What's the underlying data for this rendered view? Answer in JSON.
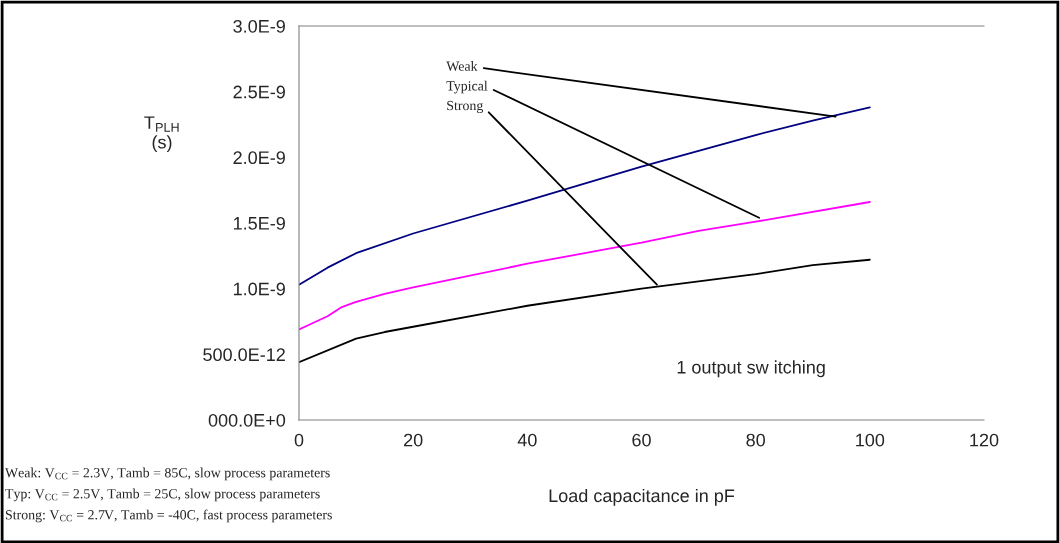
{
  "chart_data": {
    "type": "line",
    "xlabel": "Load capacitance in pF",
    "ylabel": "T$_{PLH}$\n(s)",
    "series": [
      {
        "color": "#000080",
        "x": [
          0,
          5,
          10,
          20,
          40,
          60,
          80,
          90,
          100
        ],
        "values": [
          1.03e-09,
          1.16e-09,
          1.27e-09,
          1.42e-09,
          1.67e-09,
          1.93e-09,
          2.17e-09,
          2.28e-09,
          2.38e-09
        ]
      },
      {
        "color": "#ff00ff",
        "x": [
          0,
          5,
          7.5,
          10,
          15,
          20,
          40,
          60,
          70,
          80,
          100
        ],
        "values": [
          6.9e-10,
          7.9e-10,
          8.6e-10,
          9e-10,
          9.6e-10,
          1.01e-09,
          1.19e-09,
          1.35e-09,
          1.44e-09,
          1.51e-09,
          1.66e-09
        ]
      },
      {
        "color": "#000000",
        "x": [
          0,
          10,
          15,
          20,
          40,
          60,
          80,
          90,
          100
        ],
        "values": [
          4.4e-10,
          6.2e-10,
          6.7e-10,
          7.1e-10,
          8.7e-10,
          1e-09,
          1.11e-09,
          1.18e-09,
          1.22e-09
        ]
      }
    ],
    "xlim": [
      0,
      120
    ],
    "xticks": [
      0,
      20,
      40,
      60,
      80,
      100,
      120
    ],
    "ylim": [
      0,
      3e-09
    ],
    "yticks": [
      {
        "value": 0,
        "label": "000.0E+0"
      },
      {
        "value": 5e-10,
        "label": "500.0E-12"
      },
      {
        "value": 1e-09,
        "label": "1.0E-9"
      },
      {
        "value": 1.5e-09,
        "label": "1.5E-9"
      },
      {
        "value": 2e-09,
        "label": "2.0E-9"
      },
      {
        "value": 2.5e-09,
        "label": "2.5E-9"
      },
      {
        "value": 3e-09,
        "label": "3.0E-9"
      }
    ],
    "grid": false,
    "legend": false,
    "marker": "none",
    "line_style": "solid",
    "annotations": [
      {
        "text": "Weak",
        "x": 94,
        "y": 2.31e-09
      },
      {
        "text": "Typical",
        "x": 80.6,
        "y": 1.54e-09
      },
      {
        "text": "Strong",
        "x": 62.7,
        "y": 1.03e-09
      },
      "1 output sw itching",
      "Weak: V$_{CC}$ = 2.3V, Tamb = 85C, slow process parameters",
      "Typ: V$_{CC}$ = 2.5V, Tamb = 25C, slow process parameters",
      "Strong: V$_{CC}$ = 2.7V, Tamb = -40C, fast process parameters"
    ]
  }
}
